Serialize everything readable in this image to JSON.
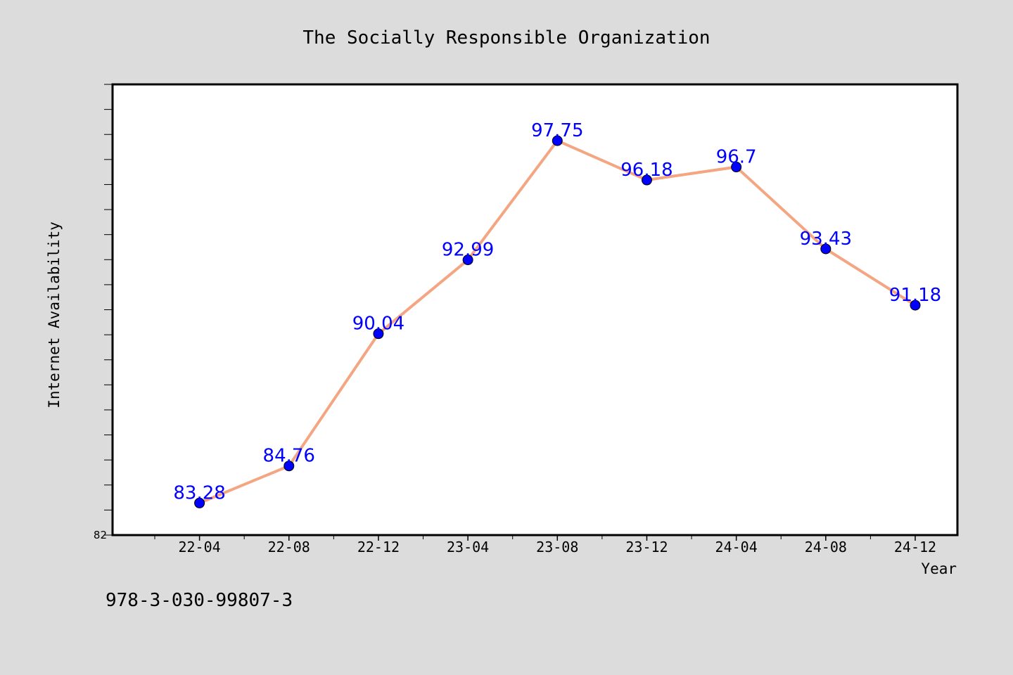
{
  "footer_text": "978-3-030-99807-3",
  "colors": {
    "background": "#dcdcdc",
    "plot_background": "#ffffff",
    "line": "#f4a582",
    "marker": "#0000ff",
    "data_label": "#0000ff"
  },
  "chart_data": {
    "type": "line",
    "title": "The Socially Responsible Organization",
    "xlabel": "Year",
    "ylabel": "Internet Availability",
    "categories": [
      "22-04",
      "22-08",
      "22-12",
      "23-04",
      "23-08",
      "23-12",
      "24-04",
      "24-08",
      "24-12"
    ],
    "x_range": [
      "22-02",
      "24-12"
    ],
    "series": [
      {
        "values": [
          83.28,
          84.76,
          90.04,
          92.99,
          97.75,
          96.18,
          96.7,
          93.43,
          91.18
        ],
        "data_labels": [
          "83.28",
          "84.76",
          "90.04",
          "92.99",
          "97.75",
          "96.18",
          "96.7",
          "93.43",
          "91.18"
        ]
      }
    ],
    "ylim": [
      82,
      100
    ],
    "y_tick_labels": [
      "82"
    ],
    "grid": false,
    "legend": "none"
  }
}
